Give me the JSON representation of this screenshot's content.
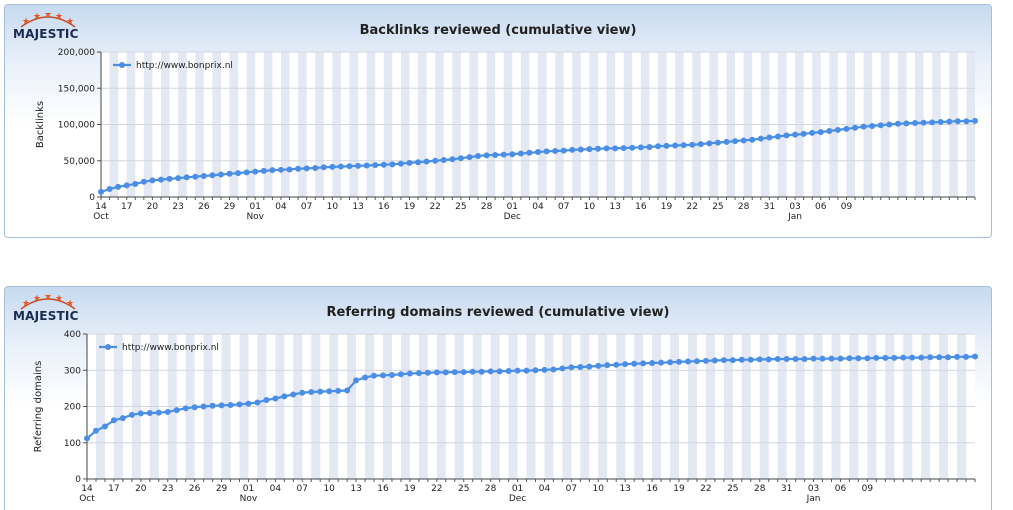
{
  "brand": {
    "logo_text": "MAJESTIC"
  },
  "colors": {
    "series": "#4a8ee6",
    "band": "#e4e8f2",
    "grid": "#cfd6e2"
  },
  "x_ticks": [
    {
      "label": "14",
      "sub": "Oct"
    },
    {
      "label": "17",
      "sub": ""
    },
    {
      "label": "20",
      "sub": ""
    },
    {
      "label": "23",
      "sub": ""
    },
    {
      "label": "26",
      "sub": ""
    },
    {
      "label": "29",
      "sub": ""
    },
    {
      "label": "01",
      "sub": "Nov"
    },
    {
      "label": "04",
      "sub": ""
    },
    {
      "label": "07",
      "sub": ""
    },
    {
      "label": "10",
      "sub": ""
    },
    {
      "label": "13",
      "sub": ""
    },
    {
      "label": "16",
      "sub": ""
    },
    {
      "label": "19",
      "sub": ""
    },
    {
      "label": "22",
      "sub": ""
    },
    {
      "label": "25",
      "sub": ""
    },
    {
      "label": "28",
      "sub": ""
    },
    {
      "label": "01",
      "sub": "Dec"
    },
    {
      "label": "04",
      "sub": ""
    },
    {
      "label": "07",
      "sub": ""
    },
    {
      "label": "10",
      "sub": ""
    },
    {
      "label": "13",
      "sub": ""
    },
    {
      "label": "16",
      "sub": ""
    },
    {
      "label": "19",
      "sub": ""
    },
    {
      "label": "22",
      "sub": ""
    },
    {
      "label": "25",
      "sub": ""
    },
    {
      "label": "28",
      "sub": ""
    },
    {
      "label": "31",
      "sub": ""
    },
    {
      "label": "03",
      "sub": "Jan"
    },
    {
      "label": "06",
      "sub": ""
    },
    {
      "label": "09",
      "sub": ""
    }
  ],
  "chart_data": [
    {
      "type": "line",
      "title": "Backlinks reviewed (cumulative view)",
      "ylabel": "Backlinks",
      "xlabel": "",
      "ylim": [
        0,
        200000
      ],
      "y_ticks": [
        0,
        50000,
        100000,
        150000,
        200000
      ],
      "y_tick_labels": [
        "0",
        "50,000",
        "100,000",
        "150,000",
        "200,000"
      ],
      "legend_position": "top-left",
      "x_start": "Oct 14",
      "series": [
        {
          "name": "http://www.bonprix.nl",
          "values": [
            7000,
            11000,
            14000,
            16000,
            18000,
            21000,
            23000,
            24000,
            25000,
            26000,
            27000,
            28000,
            29000,
            30000,
            31000,
            32000,
            33000,
            34000,
            35000,
            36000,
            37000,
            37500,
            38000,
            39000,
            39500,
            40000,
            41000,
            41500,
            42000,
            42500,
            43000,
            43500,
            44000,
            44500,
            45000,
            46000,
            47000,
            48000,
            49000,
            50000,
            51000,
            52000,
            53500,
            55000,
            56500,
            57500,
            58000,
            58500,
            59000,
            60000,
            61000,
            62000,
            63000,
            63500,
            64000,
            65000,
            65500,
            66000,
            66500,
            67000,
            67000,
            67500,
            68000,
            68500,
            69000,
            70000,
            70500,
            71000,
            71500,
            72000,
            73000,
            74000,
            75000,
            76000,
            77000,
            78000,
            79000,
            80500,
            82000,
            83500,
            85000,
            86000,
            87000,
            88500,
            89500,
            91000,
            92500,
            94000,
            95500,
            97000,
            98000,
            99000,
            100000,
            101000,
            101500,
            102000,
            102500,
            103000,
            103500,
            104000,
            104500,
            104500,
            105000
          ]
        }
      ]
    },
    {
      "type": "line",
      "title": "Referring domains reviewed (cumulative view)",
      "ylabel": "Referring domains",
      "xlabel": "",
      "ylim": [
        0,
        400
      ],
      "y_ticks": [
        0,
        100,
        200,
        300,
        400
      ],
      "y_tick_labels": [
        "0",
        "100",
        "200",
        "300",
        "400"
      ],
      "legend_position": "top-left",
      "x_start": "Oct 14",
      "series": [
        {
          "name": "http://www.bonprix.nl",
          "values": [
            112,
            133,
            145,
            162,
            168,
            177,
            181,
            182,
            183,
            185,
            190,
            195,
            198,
            200,
            202,
            203,
            204,
            206,
            208,
            211,
            218,
            222,
            228,
            233,
            238,
            240,
            241,
            242,
            243,
            244,
            272,
            280,
            285,
            286,
            287,
            289,
            291,
            292,
            293,
            294,
            294,
            295,
            295,
            296,
            296,
            297,
            297,
            298,
            299,
            299,
            300,
            301,
            302,
            305,
            308,
            309,
            310,
            312,
            314,
            315,
            317,
            318,
            319,
            320,
            321,
            322,
            323,
            324,
            325,
            326,
            327,
            328,
            328,
            329,
            329,
            330,
            330,
            331,
            331,
            331,
            331,
            332,
            332,
            332,
            332,
            333,
            333,
            333,
            334,
            334,
            334,
            335,
            335,
            335,
            336,
            336,
            336,
            337,
            337,
            338
          ]
        }
      ]
    }
  ]
}
